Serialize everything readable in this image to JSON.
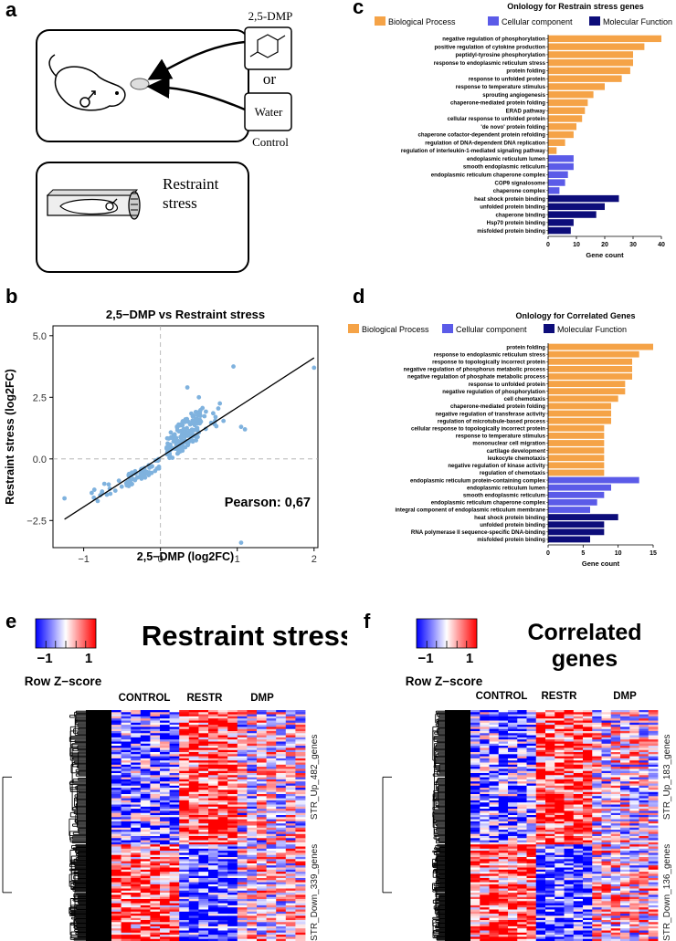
{
  "panel_labels": {
    "a": "a",
    "b": "b",
    "c": "c",
    "d": "d",
    "e": "e",
    "f": "f"
  },
  "panel_a": {
    "compound": "2,5-DMP",
    "or": "or",
    "water": "Water",
    "control": "Control",
    "restraint_line1": "Restraint",
    "restraint_line2": "stress"
  },
  "chart_data": [
    {
      "id": "c",
      "type": "bar",
      "orientation": "horizontal",
      "title": "Onlology for Restrain stress genes",
      "xlabel": "Gene count",
      "xlim": [
        0,
        40
      ],
      "xticks": [
        0,
        10,
        20,
        30,
        40
      ],
      "legend": [
        {
          "name": "Biological Process",
          "color": "#f5a347"
        },
        {
          "name": "Cellular component",
          "color": "#5b5be8"
        },
        {
          "name": "Molecular Function",
          "color": "#0d0d7a"
        }
      ],
      "categories": [
        "negative regulation of phosphorylation",
        "positive regulation of cytokine production",
        "peptidyl-tyrosine phosphorylation",
        "response to endoplasmic reticulum stress",
        "protein folding",
        "response to unfolded protein",
        "response to temperature stimulus",
        "sprouting angiogenesis",
        "chaperone-mediated protein folding",
        "ERAD pathway",
        "cellular response to unfolded protein",
        "'de novo' protein folding",
        "chaperone cofactor-dependent protein refolding",
        "regulation of DNA-dependent DNA replication",
        "regulation of interleukin-1-mediated signaling pathway",
        "endoplasmic reticulum lumen",
        "smooth endoplasmic reticulum",
        "endoplasmic reticulum chaperone complex",
        "COP9 signalosome",
        "chaperone complex",
        "heat shock protein binding",
        "unfolded protein binding",
        "chaperone binding",
        "Hsp70 protein binding",
        "misfolded protein binding"
      ],
      "values": [
        40,
        34,
        30,
        30,
        29,
        26,
        20,
        16,
        14,
        13,
        12,
        10,
        9,
        6,
        3,
        9,
        9,
        7,
        6,
        4,
        25,
        20,
        17,
        9,
        8
      ],
      "groups": [
        "BP",
        "BP",
        "BP",
        "BP",
        "BP",
        "BP",
        "BP",
        "BP",
        "BP",
        "BP",
        "BP",
        "BP",
        "BP",
        "BP",
        "BP",
        "CC",
        "CC",
        "CC",
        "CC",
        "CC",
        "MF",
        "MF",
        "MF",
        "MF",
        "MF"
      ]
    },
    {
      "id": "d",
      "type": "bar",
      "orientation": "horizontal",
      "title": "Onlology for Correlated Genes",
      "xlabel": "Gene count",
      "xlim": [
        0,
        15
      ],
      "xticks": [
        0,
        5,
        10,
        15
      ],
      "legend": [
        {
          "name": "Biological Process",
          "color": "#f5a347"
        },
        {
          "name": "Cellular component",
          "color": "#5b5be8"
        },
        {
          "name": "Molecular Function",
          "color": "#0d0d7a"
        }
      ],
      "categories": [
        "protein folding",
        "response to endoplasmic reticulum stress",
        "response to topologically incorrect protein",
        "negative regulation of phosphorus metabolic process",
        "negative regulation of phosphate metabolic process",
        "response to unfolded protein",
        "negative regulation of phosphorylation",
        "cell chemotaxis",
        "chaperone-mediated protein folding",
        "negative regulation of transferase activity",
        "regulation of microtubule-based process",
        "cellular response to topologically incorrect protein",
        "response to temperature stimulus",
        "mononuclear cell migration",
        "cartilage development",
        "leukocyte chemotaxis",
        "negative regulation of kinase activity",
        "regulation of chemotaxis",
        "endoplasmic reticulum protein-containing complex",
        "endoplasmic reticulum lumen",
        "smooth endoplasmic reticulum",
        "endoplasmic reticulum chaperone complex",
        "integral component of endoplasmic reticulum membrane",
        "heat shock protein binding",
        "unfolded protein binding",
        "RNA polymerase II sequence-specific DNA-binding",
        "misfolded protein binding"
      ],
      "values": [
        15,
        13,
        12,
        12,
        12,
        11,
        11,
        10,
        9,
        9,
        9,
        8,
        8,
        8,
        8,
        8,
        8,
        8,
        13,
        9,
        8,
        7,
        6,
        10,
        8,
        8,
        6
      ],
      "groups": [
        "BP",
        "BP",
        "BP",
        "BP",
        "BP",
        "BP",
        "BP",
        "BP",
        "BP",
        "BP",
        "BP",
        "BP",
        "BP",
        "BP",
        "BP",
        "BP",
        "BP",
        "BP",
        "CC",
        "CC",
        "CC",
        "CC",
        "CC",
        "MF",
        "MF",
        "MF",
        "MF"
      ]
    },
    {
      "id": "b",
      "type": "scatter",
      "title": "2,5−DMP vs Restraint stress",
      "xlabel": "2,5−DMP (log2FC)",
      "ylabel": "Restraint stress (log2FC)",
      "xlim": [
        -1.4,
        2.05
      ],
      "ylim": [
        -3.6,
        5.4
      ],
      "xticks": [
        -1,
        0,
        1,
        2
      ],
      "xticklabels": [
        "−1",
        "0",
        "1",
        "2"
      ],
      "yticks": [
        -2.5,
        0,
        2.5,
        5
      ],
      "yticklabels": [
        "−2.5",
        "0.0",
        "2.5",
        "5.0"
      ],
      "annotation": "Pearson: 0,67",
      "fit_line": {
        "x": [
          -1.25,
          2.0
        ],
        "y": [
          -2.45,
          4.1
        ]
      },
      "color": "#7fb2de"
    }
  ],
  "heatmap_e": {
    "title": "Restraint stress",
    "legend_title": "Row Z−score",
    "legend_ticks": [
      "−1",
      "1"
    ],
    "groups": [
      "CONTROL",
      "RESTR",
      "DMP"
    ],
    "row_labels": [
      "STR_Up_482_genes",
      "STR_Down_339_genes"
    ]
  },
  "heatmap_f": {
    "title_line1": "Correlated",
    "title_line2": "genes",
    "legend_title": "Row Z−score",
    "legend_ticks": [
      "−1",
      "1"
    ],
    "groups": [
      "CONTROL",
      "RESTR",
      "DMP"
    ],
    "row_labels": [
      "STR_Up_183_genes",
      "STR_Down_136_genes"
    ]
  }
}
